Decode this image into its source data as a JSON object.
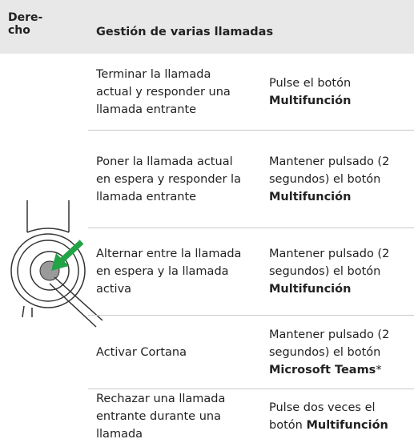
{
  "header": {
    "col1": "Dere-\ncho",
    "col2": "Gestión de varias llamadas"
  },
  "rows": [
    {
      "situation": "Terminar la llamada actual y responder una llamada entrante",
      "action": {
        "text": "Pulse el botón ",
        "bold": "Multifunción"
      }
    },
    {
      "situation": "Poner la llamada actual en espera y responder la llamada entrante",
      "action": {
        "text": "Mantener pulsado (2 segundos) el botón ",
        "bold": "Multifunción"
      }
    },
    {
      "situation": "Alternar entre la llamada en espera y la llamada activa",
      "action": {
        "text": "Mantener pulsado (2 segundos) el botón ",
        "bold": "Multifunción"
      }
    },
    {
      "situation": "Activar Cortana",
      "action": {
        "text": "Mantener pulsado (2 segundos) el botón ",
        "bold": "Microsoft Teams",
        "suffix": "*"
      }
    },
    {
      "situation": "Rechazar una llamada entrante durante una llamada",
      "action": {
        "text": "Pulse dos veces el botón ",
        "bold": "Multifunción"
      }
    }
  ]
}
